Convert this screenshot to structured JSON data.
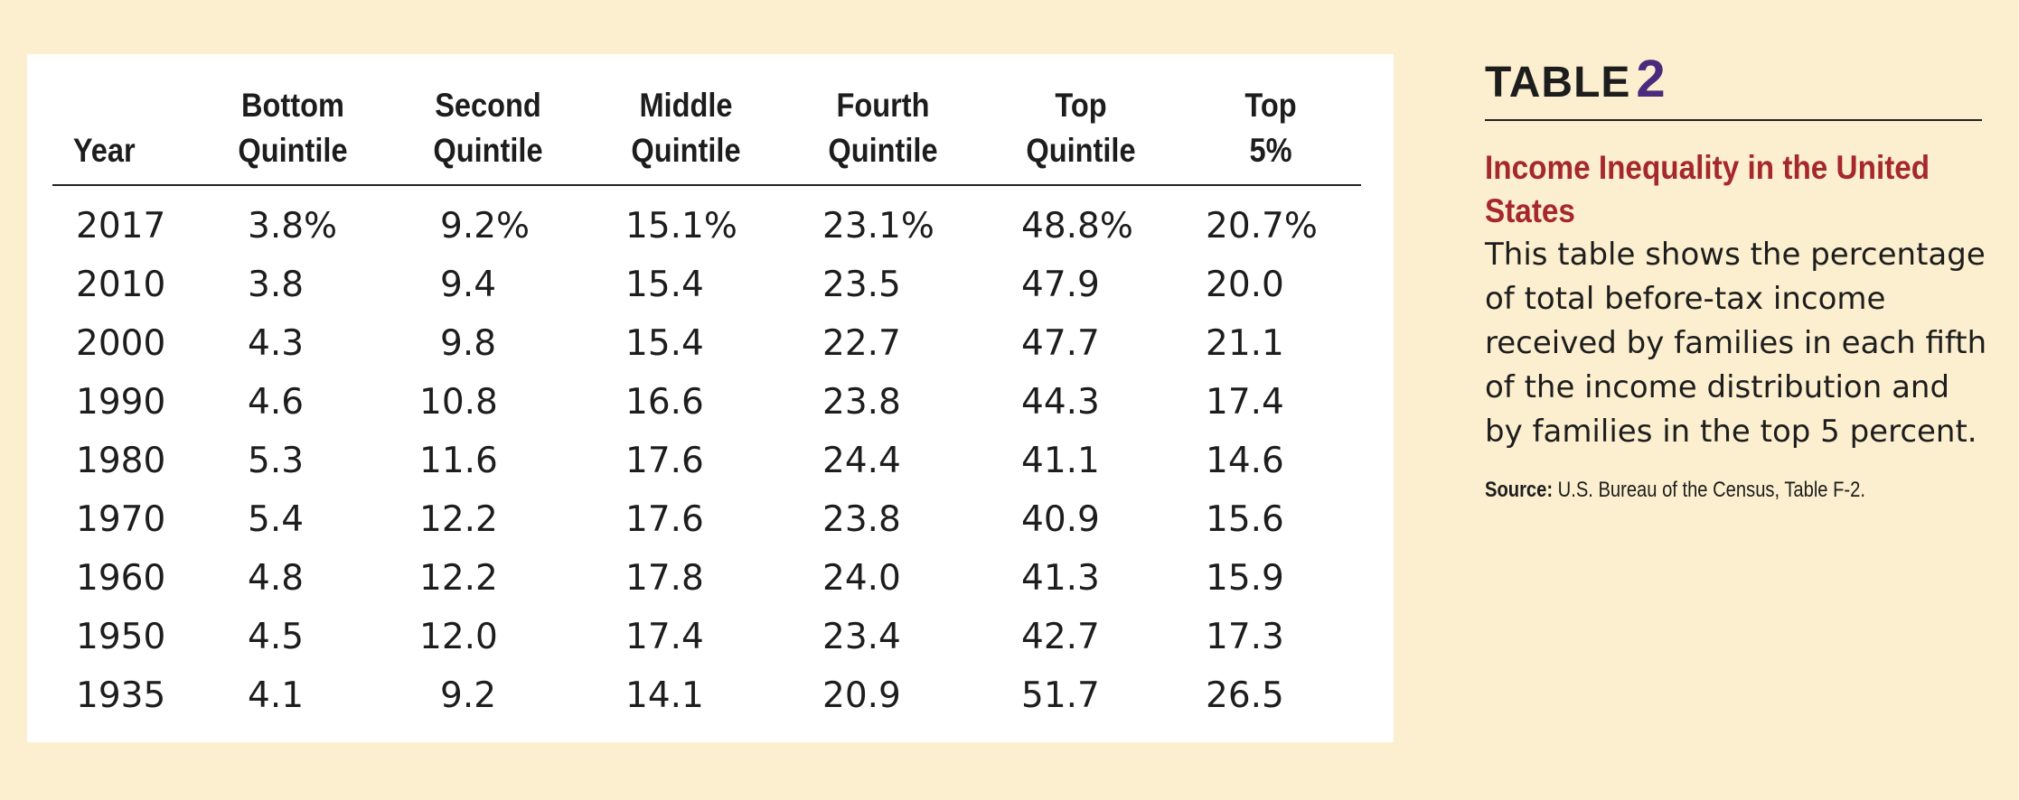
{
  "table_label": "TABLE",
  "table_number": "2",
  "title": "Income Inequality in the United States",
  "description": "This table shows the percentage of total before-tax income received by families in each fifth of the income distribution and by families in the top 5 percent.",
  "source_label": "Source:",
  "source_text": "U.S. Bureau of the Census, Table F-2.",
  "headers": [
    [
      "Year"
    ],
    [
      "Bottom",
      "Quintile"
    ],
    [
      "Second",
      "Quintile"
    ],
    [
      "Middle",
      "Quintile"
    ],
    [
      "Fourth",
      "Quintile"
    ],
    [
      "Top",
      "Quintile"
    ],
    [
      "Top",
      "5%"
    ]
  ],
  "rows": [
    [
      "2017",
      "3.8%",
      "9.2%",
      "15.1%",
      "23.1%",
      "48.8%",
      "20.7%"
    ],
    [
      "2010",
      "3.8",
      "9.4",
      "15.4",
      "23.5",
      "47.9",
      "20.0"
    ],
    [
      "2000",
      "4.3",
      "9.8",
      "15.4",
      "22.7",
      "47.7",
      "21.1"
    ],
    [
      "1990",
      "4.6",
      "10.8",
      "16.6",
      "23.8",
      "44.3",
      "17.4"
    ],
    [
      "1980",
      "5.3",
      "11.6",
      "17.6",
      "24.4",
      "41.1",
      "14.6"
    ],
    [
      "1970",
      "5.4",
      "12.2",
      "17.6",
      "23.8",
      "40.9",
      "15.6"
    ],
    [
      "1960",
      "4.8",
      "12.2",
      "17.8",
      "24.0",
      "41.3",
      "15.9"
    ],
    [
      "1950",
      "4.5",
      "12.0",
      "17.4",
      "23.4",
      "42.7",
      "17.3"
    ],
    [
      "1935",
      "4.1",
      "9.2",
      "14.1",
      "20.9",
      "51.7",
      "26.5"
    ]
  ],
  "colors": {
    "background": "#fcefcf",
    "panel": "#ffffff",
    "title": "#a5282c",
    "table_number": "#4a2a7c"
  }
}
